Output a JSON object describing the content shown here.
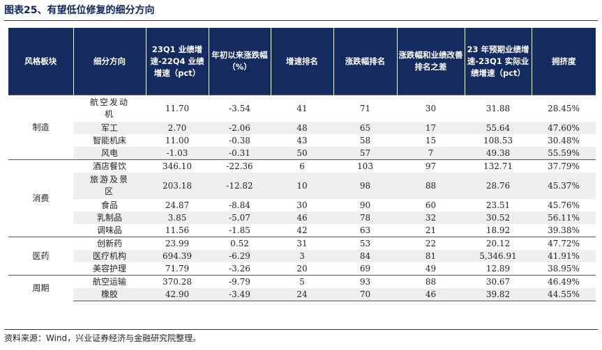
{
  "title": "图表25、有望低位修复的细分方向",
  "headers": [
    "风格板块",
    "细分方向",
    "23Q1 业绩增速-22Q4 业绩增速（pct）",
    "年初以来涨跌幅（%）",
    "增速排名",
    "涨跌幅排名",
    "涨跌幅和业绩改善排名之差",
    "23 年预期业绩增速-23Q1 实际业绩增速（pct）",
    "拥挤度"
  ],
  "groups": [
    {
      "sector": "制造",
      "rows": [
        [
          "航空发动机",
          "11.70",
          "-3.54",
          "41",
          "71",
          "30",
          "31.88",
          "28.45%"
        ],
        [
          "军工",
          "2.70",
          "-2.06",
          "48",
          "65",
          "17",
          "55.64",
          "47.60%"
        ],
        [
          "智能机床",
          "11.00",
          "-0.38",
          "43",
          "58",
          "15",
          "108.53",
          "30.48%"
        ],
        [
          "风电",
          "-1.03",
          "-0.31",
          "50",
          "57",
          "7",
          "49.38",
          "55.59%"
        ]
      ]
    },
    {
      "sector": "消费",
      "rows": [
        [
          "酒店餐饮",
          "346.10",
          "-22.36",
          "6",
          "103",
          "97",
          "132.71",
          "37.79%"
        ],
        [
          "旅游及景区",
          "203.18",
          "-12.82",
          "10",
          "98",
          "88",
          "28.76",
          "45.37%"
        ],
        [
          "食品",
          "24.87",
          "-8.84",
          "30",
          "90",
          "60",
          "23.51",
          "45.76%"
        ],
        [
          "乳制品",
          "3.85",
          "-5.07",
          "46",
          "78",
          "32",
          "30.52",
          "56.11%"
        ],
        [
          "调味品",
          "11.56",
          "-1.85",
          "42",
          "63",
          "21",
          "18.92",
          "39.38%"
        ]
      ]
    },
    {
      "sector": "医药",
      "rows": [
        [
          "创新药",
          "23.99",
          "0.52",
          "31",
          "53",
          "22",
          "20.12",
          "47.72%"
        ],
        [
          "医疗机构",
          "694.39",
          "-6.29",
          "3",
          "84",
          "81",
          "5,346.91",
          "41.91%"
        ],
        [
          "美容护理",
          "71.79",
          "-3.26",
          "20",
          "69",
          "49",
          "12.89",
          "38.95%"
        ]
      ]
    },
    {
      "sector": "周期",
      "rows": [
        [
          "航空运输",
          "370.28",
          "-9.79",
          "5",
          "93",
          "88",
          "30.67",
          "46.49%"
        ],
        [
          "橡胶",
          "42.90",
          "-3.49",
          "24",
          "70",
          "46",
          "39.82",
          "44.55%"
        ]
      ]
    }
  ],
  "source": "资料来源：Wind，兴业证券经济与金融研究院整理。"
}
